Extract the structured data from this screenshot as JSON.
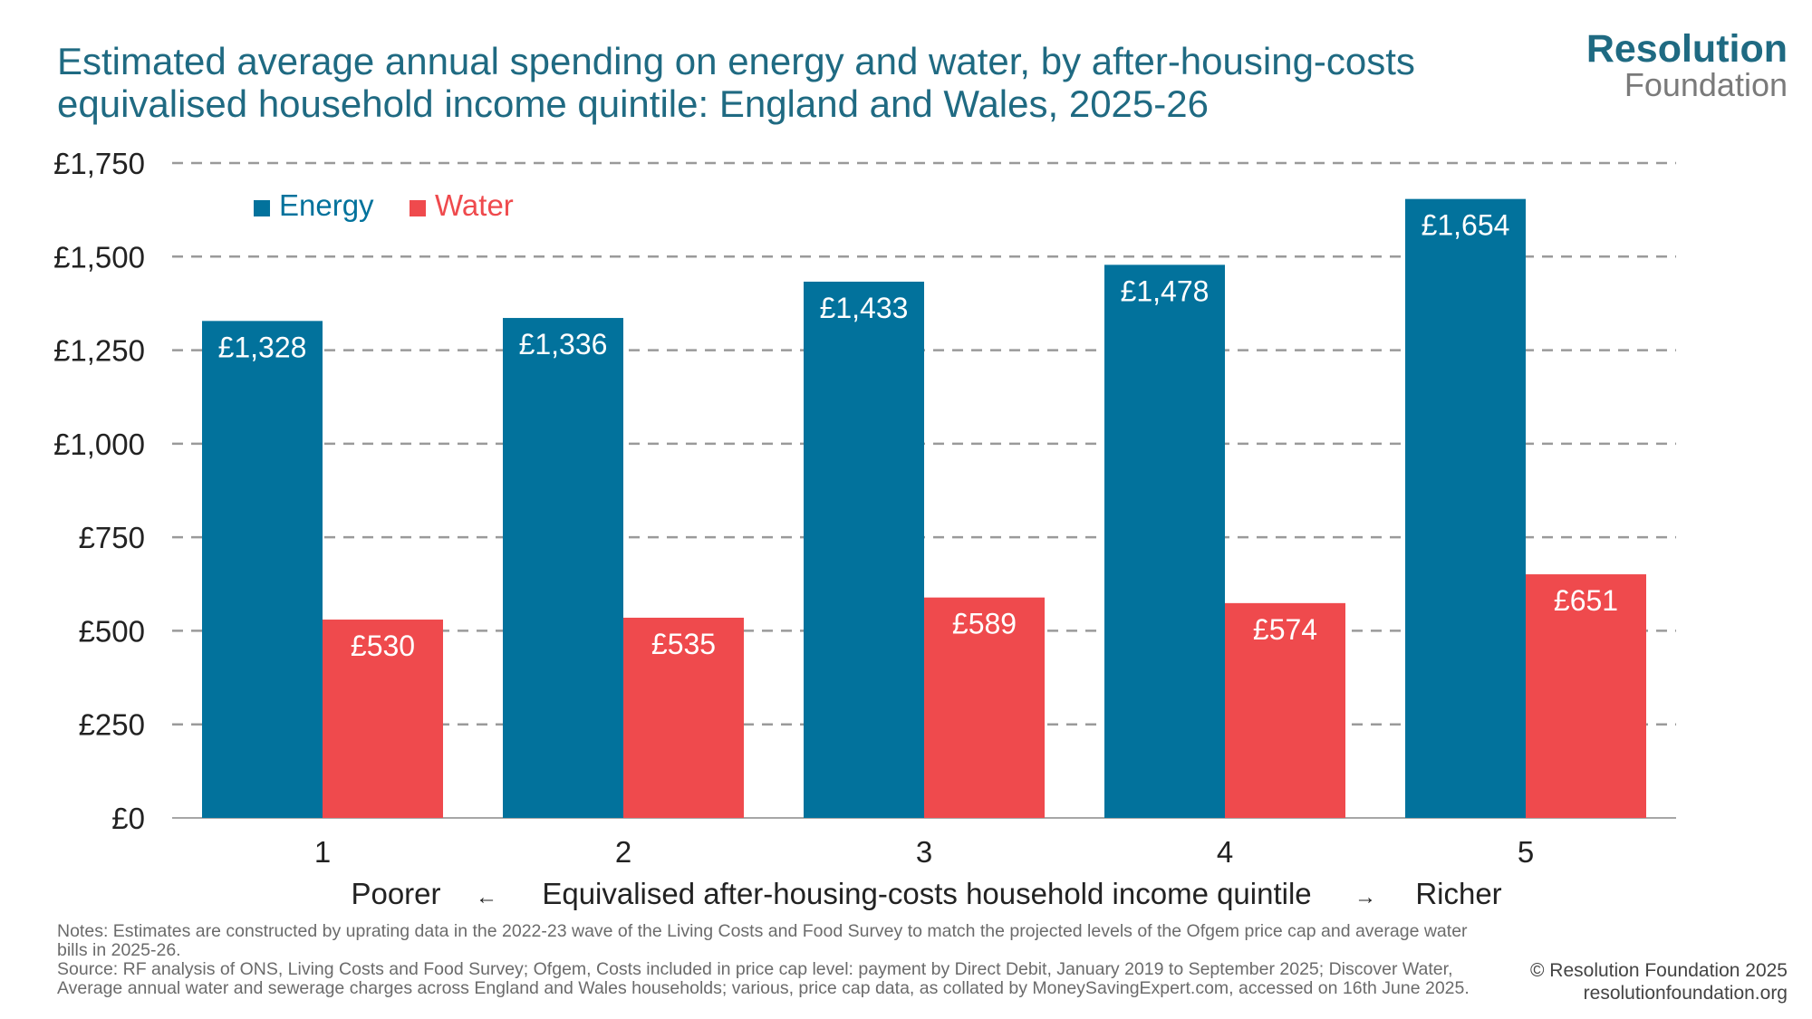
{
  "title": "Estimated average annual spending on energy and water, by after-housing-costs equivalised household income quintile: England and Wales, 2025-26",
  "logo": {
    "line1": "Resolution",
    "line2": "Foundation"
  },
  "colors": {
    "energy": "#02729c",
    "water": "#ef4a4d",
    "title": "#1f6a82",
    "grid": "#9a9a9a"
  },
  "chart_data": {
    "type": "bar",
    "categories": [
      "1",
      "2",
      "3",
      "4",
      "5"
    ],
    "series": [
      {
        "name": "Energy",
        "values": [
          1328,
          1336,
          1433,
          1478,
          1654
        ],
        "labels": [
          "£1,328",
          "£1,336",
          "£1,433",
          "£1,478",
          "£1,654"
        ]
      },
      {
        "name": "Water",
        "values": [
          530,
          535,
          589,
          574,
          651
        ],
        "labels": [
          "£530",
          "£535",
          "£589",
          "£574",
          "£651"
        ]
      }
    ],
    "ylim": [
      0,
      1750
    ],
    "yticks": [
      0,
      250,
      500,
      750,
      1000,
      1250,
      1500,
      1750
    ],
    "ytick_labels": [
      "£0",
      "£250",
      "£500",
      "£750",
      "£1,000",
      "£1,250",
      "£1,500",
      "£1,750"
    ],
    "xlabel": {
      "left": "Poorer",
      "left_arrow": "←",
      "center": "Equivalised after-housing-costs household income quintile",
      "right_arrow": "→",
      "right": "Richer"
    },
    "grid": "dashed horizontal",
    "legend_position": "top-left"
  },
  "notes": {
    "notes_text": "Notes: Estimates are constructed by uprating data in the 2022-23 wave of the Living Costs and Food Survey to match the projected levels of the Ofgem price cap and average water bills in 2025-26.",
    "source_text": "Source: RF analysis of ONS, Living Costs and Food Survey; Ofgem, Costs included in price cap level: payment by Direct Debit, January 2019 to September 2025; Discover Water, Average annual water and sewerage charges across England and Wales households; various, price cap data, as collated by MoneySavingExpert.com, accessed on 16th June 2025."
  },
  "credit": {
    "copyright": "© Resolution Foundation 2025",
    "url": "resolutionfoundation.org"
  }
}
